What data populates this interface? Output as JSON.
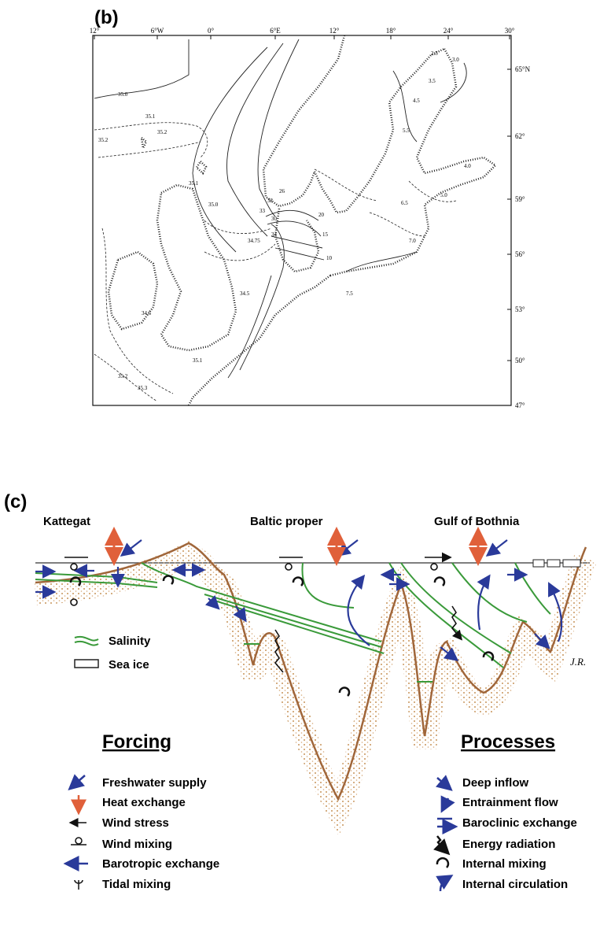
{
  "panel_b": {
    "label": "(b)",
    "longitude_labels": [
      "12°",
      "6°W",
      "0°",
      "6°E",
      "12°",
      "18°",
      "24°",
      "30°"
    ],
    "latitude_labels": [
      "65°N",
      "62°",
      "59°",
      "56°",
      "53°",
      "50°",
      "47°"
    ],
    "contour_labels": [
      "35.0",
      "35.1",
      "35.2",
      "35.2",
      "35.1",
      "35.0",
      "34.5",
      "34.75",
      "34.5",
      "34",
      "33",
      "32",
      "30",
      "26",
      "20",
      "15",
      "10",
      "5.5",
      "6.5",
      "7.0",
      "7.5",
      "4.5",
      "3.5",
      "3.0",
      "2.5",
      "4.0",
      "5.0",
      "35.1",
      "35.2",
      "35.3"
    ]
  },
  "panel_c": {
    "label": "(c)",
    "regions": [
      "Kattegat",
      "Baltic proper",
      "Gulf of Bothnia"
    ],
    "legend": [
      "Salinity",
      "Sea ice"
    ],
    "signature": "J.R.",
    "forcing": {
      "title": "Forcing",
      "items": [
        "Freshwater supply",
        "Heat exchange",
        "Wind stress",
        "Wind mixing",
        "Barotropic exchange",
        "Tidal mixing"
      ]
    },
    "processes": {
      "title": "Processes",
      "items": [
        "Deep inflow",
        "Entrainment flow",
        "Baroclinic exchange",
        "Energy radiation",
        "Internal mixing",
        "Internal circulation"
      ]
    }
  }
}
